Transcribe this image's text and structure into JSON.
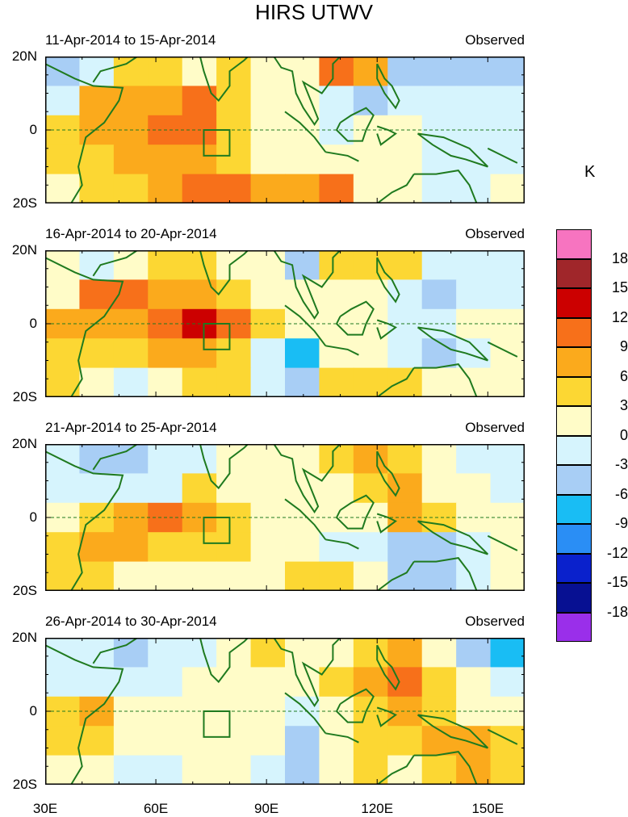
{
  "title": "HIRS UTWV",
  "colorbar": {
    "unit": "K",
    "tick_labels": [
      "18",
      "15",
      "12",
      "9",
      "6",
      "3",
      "0",
      "-3",
      "-6",
      "-9",
      "-12",
      "-15",
      "-18"
    ],
    "colors": [
      "#f774c0",
      "#a0262a",
      "#cc0000",
      "#f7701a",
      "#fbaa1c",
      "#fcd733",
      "#fffcc8",
      "#d6f4fd",
      "#a8cef5",
      "#19bdf4",
      "#2a8ef5",
      "#0a21cc",
      "#071092",
      "#9a2fea"
    ]
  },
  "chart_data": [
    {
      "type": "heatmap",
      "title": "11-Apr-2014 to 15-Apr-2014",
      "label": "Observed",
      "xlabel": "",
      "ylabel": "",
      "xlim": [
        30,
        160
      ],
      "ylim": [
        -20,
        20
      ],
      "xticks": [
        "30E",
        "60E",
        "90E",
        "120E",
        "150E"
      ],
      "yticks": [
        "20N",
        "0",
        "20S"
      ],
      "x": [
        30,
        40,
        50,
        60,
        70,
        80,
        90,
        100,
        110,
        120,
        130,
        140,
        150,
        160
      ],
      "y": [
        20,
        10,
        0,
        -10,
        -20
      ],
      "values": [
        [
          -6,
          -3,
          3,
          3,
          0,
          3,
          0,
          0,
          9,
          6,
          -6,
          -6,
          -6,
          -6
        ],
        [
          -3,
          6,
          6,
          6,
          9,
          3,
          0,
          0,
          -3,
          -6,
          -3,
          -3,
          -3,
          -3
        ],
        [
          3,
          6,
          6,
          9,
          9,
          3,
          0,
          0,
          -3,
          0,
          0,
          -3,
          -3,
          -3
        ],
        [
          3,
          3,
          6,
          6,
          6,
          3,
          0,
          0,
          0,
          0,
          0,
          -3,
          -3,
          -3
        ],
        [
          0,
          3,
          3,
          6,
          9,
          9,
          6,
          6,
          9,
          0,
          0,
          -3,
          -3,
          0
        ]
      ]
    },
    {
      "type": "heatmap",
      "title": "16-Apr-2014 to 20-Apr-2014",
      "label": "Observed",
      "xlabel": "",
      "ylabel": "",
      "xlim": [
        30,
        160
      ],
      "ylim": [
        -20,
        20
      ],
      "xticks": [
        "30E",
        "60E",
        "90E",
        "120E",
        "150E"
      ],
      "yticks": [
        "20N",
        "0",
        "20S"
      ],
      "x": [
        30,
        40,
        50,
        60,
        70,
        80,
        90,
        100,
        110,
        120,
        130,
        140,
        150,
        160
      ],
      "y": [
        20,
        10,
        0,
        -10,
        -20
      ],
      "values": [
        [
          0,
          -3,
          0,
          3,
          3,
          0,
          0,
          -6,
          3,
          3,
          3,
          -3,
          -3,
          -3
        ],
        [
          0,
          9,
          9,
          6,
          6,
          3,
          0,
          0,
          0,
          0,
          -3,
          -6,
          -3,
          -3
        ],
        [
          6,
          6,
          6,
          9,
          12,
          9,
          3,
          0,
          0,
          0,
          -3,
          -3,
          0,
          0
        ],
        [
          3,
          3,
          3,
          6,
          6,
          3,
          -3,
          -9,
          0,
          0,
          -3,
          -6,
          -3,
          0
        ],
        [
          3,
          0,
          -3,
          0,
          3,
          3,
          -3,
          -6,
          3,
          3,
          3,
          0,
          0,
          0
        ]
      ]
    },
    {
      "type": "heatmap",
      "title": "21-Apr-2014 to 25-Apr-2014",
      "label": "Observed",
      "xlabel": "",
      "ylabel": "",
      "xlim": [
        30,
        160
      ],
      "ylim": [
        -20,
        20
      ],
      "xticks": [
        "30E",
        "60E",
        "90E",
        "120E",
        "150E"
      ],
      "yticks": [
        "20N",
        "0",
        "20S"
      ],
      "x": [
        30,
        40,
        50,
        60,
        70,
        80,
        90,
        100,
        110,
        120,
        130,
        140,
        150,
        160
      ],
      "y": [
        20,
        10,
        0,
        -10,
        -20
      ],
      "values": [
        [
          -3,
          -6,
          -6,
          -3,
          -3,
          0,
          0,
          0,
          3,
          6,
          3,
          0,
          -3,
          -3
        ],
        [
          -3,
          -3,
          -3,
          -3,
          3,
          0,
          0,
          0,
          0,
          3,
          6,
          0,
          0,
          -3
        ],
        [
          0,
          3,
          6,
          9,
          6,
          3,
          0,
          0,
          0,
          0,
          6,
          3,
          0,
          0
        ],
        [
          3,
          6,
          6,
          3,
          3,
          3,
          0,
          0,
          -3,
          -3,
          -6,
          -6,
          -3,
          0
        ],
        [
          3,
          3,
          0,
          0,
          0,
          0,
          0,
          3,
          3,
          0,
          -6,
          -6,
          -3,
          0
        ]
      ]
    },
    {
      "type": "heatmap",
      "title": "26-Apr-2014 to 30-Apr-2014",
      "label": "Observed",
      "xlabel": "",
      "ylabel": "",
      "xlim": [
        30,
        160
      ],
      "ylim": [
        -20,
        20
      ],
      "xticks": [
        "30E",
        "60E",
        "90E",
        "120E",
        "150E"
      ],
      "yticks": [
        "20N",
        "0",
        "20S"
      ],
      "x": [
        30,
        40,
        50,
        60,
        70,
        80,
        90,
        100,
        110,
        120,
        130,
        140,
        150,
        160
      ],
      "y": [
        20,
        10,
        0,
        -10,
        -20
      ],
      "values": [
        [
          -3,
          -3,
          -6,
          -3,
          -3,
          0,
          3,
          0,
          0,
          3,
          6,
          0,
          -6,
          -9
        ],
        [
          -3,
          -3,
          -3,
          -3,
          0,
          0,
          0,
          0,
          3,
          6,
          9,
          3,
          0,
          -3
        ],
        [
          3,
          6,
          0,
          0,
          0,
          0,
          0,
          -3,
          0,
          3,
          6,
          3,
          0,
          0
        ],
        [
          3,
          3,
          0,
          0,
          0,
          0,
          0,
          -6,
          0,
          3,
          3,
          6,
          6,
          3
        ],
        [
          0,
          0,
          -3,
          -3,
          0,
          0,
          -3,
          -6,
          0,
          3,
          0,
          3,
          6,
          3
        ]
      ]
    }
  ]
}
